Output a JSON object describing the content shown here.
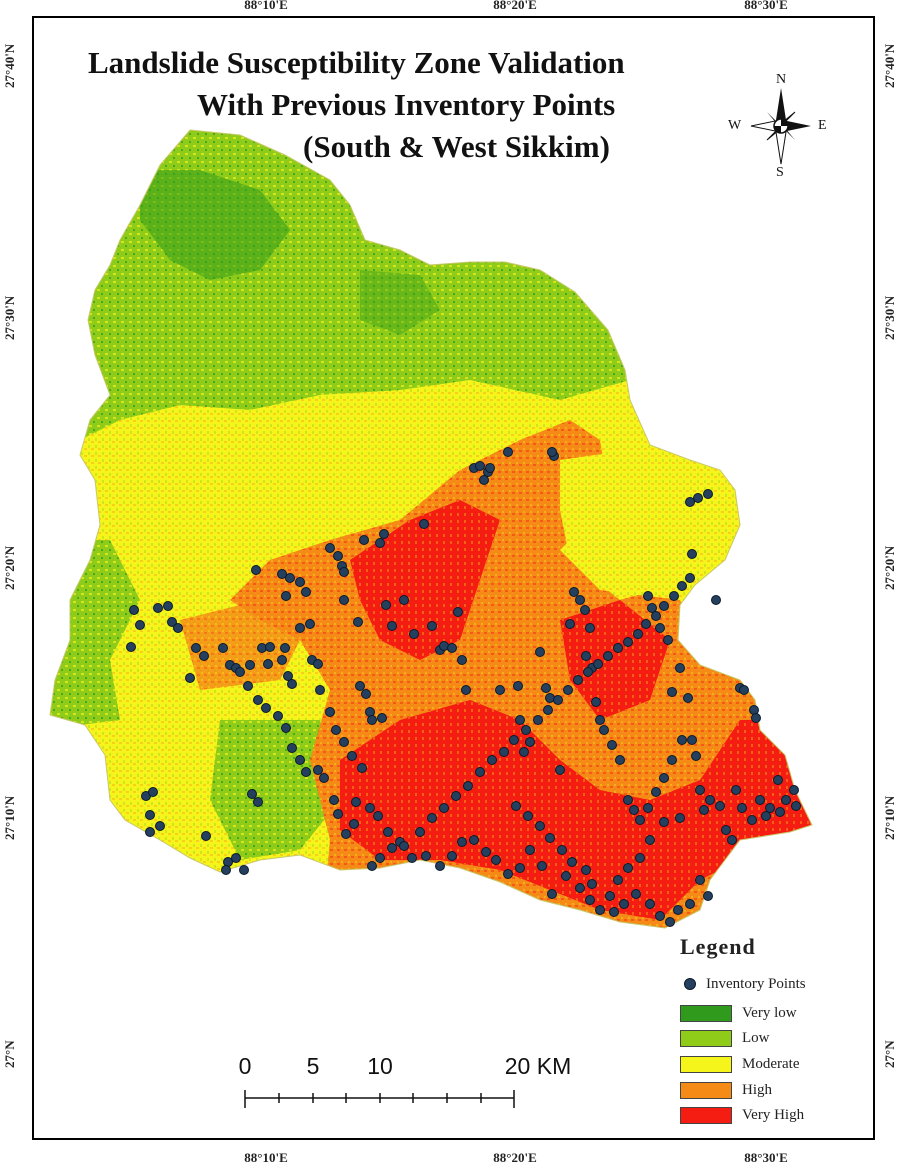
{
  "title": {
    "line1": "Landslide Susceptibility Zone Validation",
    "line2": "With Previous Inventory Points",
    "line3": "(South & West Sikkim)"
  },
  "coordinates": {
    "top": [
      "88°10'E",
      "88°20'E",
      "88°30'E"
    ],
    "bottom": [
      "88°10'E",
      "88°20'E",
      "88°30'E"
    ],
    "left": [
      "27°40'N",
      "27°30'N",
      "27°20'N",
      "27°10'N",
      "27°N"
    ],
    "right": [
      "27°40'N",
      "27°30'N",
      "27°20'N",
      "27°10'N",
      "27°N"
    ]
  },
  "compass": {
    "n": "N",
    "s": "S",
    "e": "E",
    "w": "W"
  },
  "scale_bar": {
    "labels": [
      "0",
      "5",
      "10",
      "20 KM"
    ]
  },
  "legend": {
    "title": "Legend",
    "point_label": "Inventory Points",
    "classes": [
      {
        "label": "Very low",
        "color": "#2f9a1c"
      },
      {
        "label": "Low",
        "color": "#8fcc1a"
      },
      {
        "label": "Moderate",
        "color": "#f6f51b"
      },
      {
        "label": "High",
        "color": "#f58a17"
      },
      {
        "label": "Very High",
        "color": "#f51d12"
      }
    ]
  },
  "colors": {
    "point_fill": "#24405e",
    "point_stroke": "#0a1a2a"
  }
}
